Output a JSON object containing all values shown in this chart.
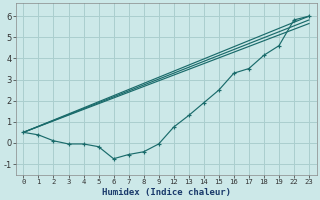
{
  "xlabel": "Humidex (Indice chaleur)",
  "bg_color": "#cce8e8",
  "grid_color": "#aacece",
  "line_color": "#1a6b6b",
  "ylim": [
    -1.5,
    6.6
  ],
  "yticks": [
    -1,
    0,
    1,
    2,
    3,
    4,
    5,
    6
  ],
  "xtick_labels": [
    "0",
    "1",
    "2",
    "3",
    "4",
    "5",
    "6",
    "7",
    "8",
    "9",
    "12",
    "13",
    "14",
    "15",
    "16",
    "17",
    "18",
    "19",
    "22",
    "23"
  ],
  "line1_xi": [
    0,
    19
  ],
  "line1_y": [
    0.5,
    6.0
  ],
  "line2_xi": [
    0,
    19
  ],
  "line2_y": [
    0.5,
    5.82
  ],
  "line3_xi": [
    0,
    19
  ],
  "line3_y": [
    0.5,
    5.65
  ],
  "line4_xi": [
    0,
    1,
    2,
    3,
    4,
    5,
    6,
    7,
    8,
    9,
    10,
    11,
    12,
    13,
    14,
    15,
    16,
    17,
    18,
    19
  ],
  "line4_y": [
    0.5,
    0.38,
    0.1,
    -0.05,
    -0.05,
    -0.18,
    -0.75,
    -0.55,
    -0.42,
    -0.05,
    0.75,
    1.3,
    1.9,
    2.5,
    3.3,
    3.52,
    4.15,
    4.6,
    5.82,
    6.0
  ]
}
